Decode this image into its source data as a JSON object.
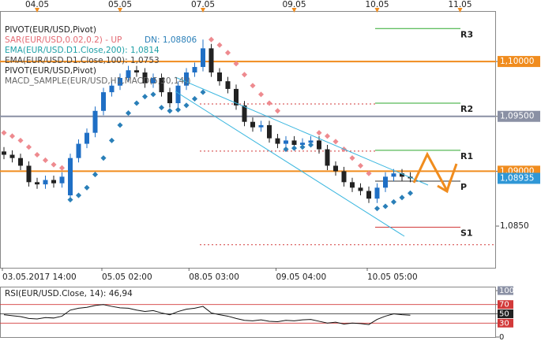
{
  "chart_data": {
    "type": "candlestick",
    "legend": [
      "PIVOT(EUR/USD,Pivot)",
      "SAR(EUR/USD,0.02,0.2) - UP",
      "DN: 1,08806",
      "EMA(EUR/USD.D1.Close,200): 1,0814",
      "EMA(EUR/USD.D1.Close,100): 1,0753",
      "PIVOT(EUR/USD,Pivot)",
      "MACD_SAMPLE(EUR/USD,H1,MACD(5,30,14))"
    ],
    "open": [
      1.0918,
      1.0915,
      1.0912,
      1.0905,
      1.089,
      1.0888,
      1.0892,
      1.0889,
      1.0878,
      1.0912,
      1.0925,
      1.0935,
      1.0955,
      1.0972,
      1.0978,
      1.0985,
      1.0992,
      1.099,
      1.098,
      1.0985,
      1.0972,
      1.0962,
      1.0978,
      1.099,
      1.0995,
      1.1012,
      1.099,
      1.0982,
      1.0975,
      1.096,
      1.0945,
      1.094,
      1.0942,
      1.093,
      1.0925,
      1.0928,
      1.0924,
      1.0926,
      1.0928,
      1.092,
      1.0905,
      1.09,
      1.089,
      1.0885,
      1.0882,
      1.0875,
      1.0885,
      1.0895,
      1.0898,
      1.0895
    ],
    "high": [
      1.0922,
      1.0919,
      1.0916,
      1.0909,
      1.0894,
      1.0896,
      1.0896,
      1.0899,
      1.0916,
      1.0929,
      1.0939,
      1.0959,
      1.0976,
      1.0982,
      1.0989,
      1.0996,
      1.0996,
      1.0994,
      1.0989,
      1.0989,
      1.0976,
      1.0982,
      1.0994,
      1.0999,
      1.102,
      1.1016,
      1.0994,
      1.0986,
      1.0979,
      1.0964,
      1.0949,
      1.0946,
      1.0946,
      1.0934,
      1.0932,
      1.0932,
      1.093,
      1.0932,
      1.0932,
      1.0924,
      1.0909,
      1.0904,
      1.0894,
      1.0889,
      1.0886,
      1.0889,
      1.0899,
      1.0902,
      1.0902,
      1.0899
    ],
    "low": [
      1.0911,
      1.0908,
      1.0901,
      1.0886,
      1.0884,
      1.0884,
      1.0885,
      1.0885,
      1.0874,
      1.0908,
      1.0921,
      1.0931,
      1.0951,
      1.0968,
      1.0974,
      1.0981,
      1.0986,
      1.0976,
      1.0976,
      1.0968,
      1.0958,
      1.0958,
      1.0974,
      1.0986,
      1.0991,
      1.0986,
      1.0978,
      1.0971,
      1.0956,
      1.0941,
      1.0936,
      1.0936,
      1.0926,
      1.0921,
      1.0921,
      1.092,
      1.092,
      1.0922,
      1.0916,
      1.0901,
      1.0896,
      1.0886,
      1.0881,
      1.0878,
      1.0871,
      1.0871,
      1.0881,
      1.0891,
      1.0891,
      1.089
    ],
    "close": [
      1.0915,
      1.0912,
      1.0905,
      1.089,
      1.0888,
      1.0892,
      1.0889,
      1.0895,
      1.0912,
      1.0925,
      1.0935,
      1.0955,
      1.0972,
      1.0978,
      1.0985,
      1.0992,
      1.099,
      1.098,
      1.0985,
      1.0972,
      1.0962,
      1.0978,
      1.099,
      1.0995,
      1.1012,
      1.099,
      1.0982,
      1.0975,
      1.096,
      1.0945,
      1.094,
      1.0942,
      1.093,
      1.0925,
      1.0928,
      1.0924,
      1.0926,
      1.0928,
      1.092,
      1.0905,
      1.09,
      1.089,
      1.0885,
      1.0882,
      1.0875,
      1.0885,
      1.0895,
      1.0898,
      1.0895,
      1.08935
    ],
    "sar": [
      1.0935,
      1.0932,
      1.0928,
      1.0922,
      1.0915,
      1.091,
      1.0906,
      1.0903,
      1.0874,
      1.0878,
      1.0885,
      1.0897,
      1.0912,
      1.0928,
      1.0942,
      1.0953,
      1.0962,
      1.0968,
      1.097,
      1.0958,
      1.0955,
      1.0956,
      1.096,
      1.0966,
      1.0972,
      1.102,
      1.1015,
      1.1008,
      1.0998,
      1.0988,
      1.0978,
      1.097,
      1.0962,
      1.0955,
      1.092,
      1.0921,
      1.0922,
      1.0924,
      1.0935,
      1.0932,
      1.0927,
      1.092,
      1.0912,
      1.0905,
      1.0898,
      1.0866,
      1.0868,
      1.0872,
      1.0876,
      1.088
    ],
    "up_color": "#1f6fc5",
    "down_color": "#222222",
    "sar_up_color": "#2a7fb8",
    "sar_down_color": "#ee8a8f",
    "ylim": [
      1.0812,
      1.1046
    ],
    "yticks": [
      {
        "value": 1.1,
        "label": "1,10000"
      },
      {
        "value": 1.095,
        "label": "1,09500"
      },
      {
        "value": 1.09,
        "label": "1,09000"
      },
      {
        "value": 1.085,
        "label": "1,0850"
      }
    ],
    "levels": [
      {
        "value": 1.1,
        "color": "#f08c1e"
      },
      {
        "value": 1.095,
        "color": "#8a90a4"
      },
      {
        "value": 1.09,
        "color": "#f08c1e"
      }
    ],
    "last_price": {
      "value": 1.08935,
      "label": "1,08935",
      "color": "#2f97d6"
    },
    "pivots": [
      {
        "label": "R3",
        "value": 1.103,
        "color": "#2ea82e"
      },
      {
        "label": "R2",
        "value": 1.0962,
        "color": "#2ea82e"
      },
      {
        "label": "R1",
        "value": 1.0919,
        "color": "#2ea82e"
      },
      {
        "label": "P",
        "value": 1.0891,
        "color": "#333333"
      },
      {
        "label": "S1",
        "value": 1.0849,
        "color": "#d23a3a"
      },
      {
        "label": null,
        "value": 1.0833,
        "color": "#d23a3a"
      }
    ],
    "xlim": [
      0,
      59.5
    ],
    "top_xticks": [
      {
        "value": 4,
        "label": "04.05"
      },
      {
        "value": 14,
        "label": "05.05"
      },
      {
        "value": 24,
        "label": "07.05"
      },
      {
        "value": 35,
        "label": "09.05"
      },
      {
        "value": 45,
        "label": "10.05"
      },
      {
        "value": 55,
        "label": "11.05"
      }
    ],
    "xticks": [
      {
        "value": 0,
        "label": "03.05.2017 14:00"
      },
      {
        "value": 12,
        "label": "05.05 02:00"
      },
      {
        "value": 22.5,
        "label": "08.05 03:00"
      },
      {
        "value": 33,
        "label": "09.05 04:00"
      },
      {
        "value": 44,
        "label": "10.05 05:00"
      }
    ],
    "rsi_title": "RSI(EUR/USD.Close, 14): 46,94",
    "rsi": [
      48,
      46,
      44,
      40,
      39,
      42,
      41,
      45,
      58,
      62,
      64,
      68,
      70,
      66,
      63,
      62,
      58,
      55,
      57,
      52,
      48,
      55,
      60,
      62,
      66,
      52,
      48,
      45,
      40,
      36,
      35,
      37,
      34,
      33,
      36,
      35,
      37,
      38,
      34,
      30,
      32,
      28,
      30,
      29,
      27,
      38,
      45,
      50,
      48,
      46.94
    ],
    "rsi_ylim": [
      0,
      100
    ],
    "rsi_yticks": [
      100,
      70,
      50,
      30,
      0
    ],
    "rsi_levels": [
      {
        "value": 70,
        "color": "#d23a3a"
      },
      {
        "value": 50,
        "color": "#222222"
      },
      {
        "value": 30,
        "color": "#d23a3a"
      }
    ]
  }
}
